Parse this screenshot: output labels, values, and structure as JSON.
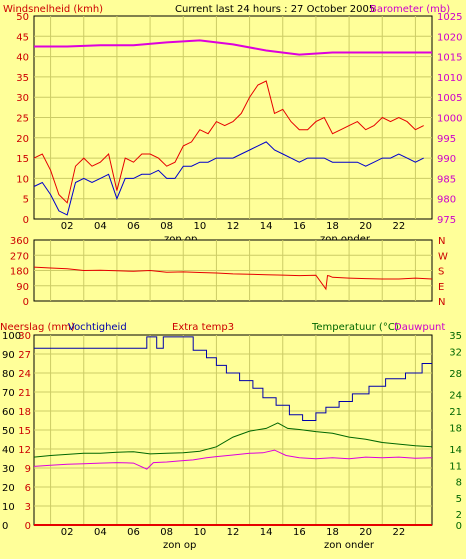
{
  "header": {
    "left_title": "Windsnelheid (kmh)",
    "center_title": "Current last 24 hours : 27 October 2005",
    "right_title": "Barometer (mb)"
  },
  "colors": {
    "background": "#ffff99",
    "wind_gust": "#e60000",
    "wind_avg": "#0000cc",
    "barometer": "#dd00dd",
    "direction": "#e60000",
    "rain": "#e60000",
    "humidity": "#0000aa",
    "temperature": "#006600",
    "dewpoint": "#dd00dd",
    "axis_text_left": "#cc0000",
    "axis_text_right": "#cc00cc",
    "green_text": "#006600"
  },
  "sun_labels": {
    "sunrise": "zon op",
    "sunset": "zon onder"
  },
  "chart_data": [
    {
      "type": "line",
      "title": "Windsnelheid (kmh) / Barometer (mb)",
      "x_ticks": [
        "02",
        "04",
        "06",
        "08",
        "10",
        "12",
        "14",
        "16",
        "18",
        "20",
        "22"
      ],
      "x_range_hours": [
        0,
        24
      ],
      "y_left": {
        "label": "Windsnelheid (kmh)",
        "range": [
          0,
          50
        ],
        "ticks": [
          0,
          5,
          10,
          15,
          20,
          25,
          30,
          35,
          40,
          45,
          50
        ]
      },
      "y_right": {
        "label": "Barometer (mb)",
        "range": [
          975,
          1025
        ],
        "ticks": [
          975,
          980,
          985,
          990,
          995,
          1000,
          1005,
          1010,
          1015,
          1020,
          1025
        ]
      },
      "series": [
        {
          "name": "Windsnelheid gust",
          "axis": "left",
          "x": [
            0,
            0.5,
            1,
            1.5,
            2,
            2.5,
            3,
            3.5,
            4,
            4.5,
            5,
            5.5,
            6,
            6.5,
            7,
            7.5,
            8,
            8.5,
            9,
            9.5,
            10,
            10.5,
            11,
            11.5,
            12,
            12.5,
            13,
            13.5,
            14,
            14.5,
            15,
            15.5,
            16,
            16.5,
            17,
            17.5,
            18,
            18.5,
            19,
            19.5,
            20,
            20.5,
            21,
            21.5,
            22,
            22.5,
            23,
            23.5
          ],
          "values": [
            15,
            16,
            12,
            6,
            4,
            13,
            15,
            13,
            14,
            16,
            7,
            15,
            14,
            16,
            16,
            15,
            13,
            14,
            18,
            19,
            22,
            21,
            24,
            23,
            24,
            26,
            30,
            33,
            34,
            26,
            27,
            24,
            22,
            22,
            24,
            25,
            21,
            22,
            23,
            24,
            22,
            23,
            25,
            24,
            25,
            24,
            22,
            23
          ]
        },
        {
          "name": "Windsnelheid gemiddeld",
          "axis": "left",
          "x": [
            0,
            0.5,
            1,
            1.5,
            2,
            2.5,
            3,
            3.5,
            4,
            4.5,
            5,
            5.5,
            6,
            6.5,
            7,
            7.5,
            8,
            8.5,
            9,
            9.5,
            10,
            10.5,
            11,
            11.5,
            12,
            12.5,
            13,
            13.5,
            14,
            14.5,
            15,
            15.5,
            16,
            16.5,
            17,
            17.5,
            18,
            18.5,
            19,
            19.5,
            20,
            20.5,
            21,
            21.5,
            22,
            22.5,
            23,
            23.5
          ],
          "values": [
            8,
            9,
            6,
            2,
            1,
            9,
            10,
            9,
            10,
            11,
            5,
            10,
            10,
            11,
            11,
            12,
            10,
            10,
            13,
            13,
            14,
            14,
            15,
            15,
            15,
            16,
            17,
            18,
            19,
            17,
            16,
            15,
            14,
            15,
            15,
            15,
            14,
            14,
            14,
            14,
            13,
            14,
            15,
            15,
            16,
            15,
            14,
            15
          ]
        },
        {
          "name": "Barometer",
          "axis": "right",
          "x": [
            0,
            2,
            4,
            6,
            8,
            10,
            12,
            14,
            16,
            18,
            20,
            22,
            24
          ],
          "values": [
            1017.5,
            1017.5,
            1017.8,
            1017.8,
            1018.5,
            1019,
            1018,
            1016.5,
            1015.5,
            1016,
            1016,
            1016,
            1016
          ]
        }
      ]
    },
    {
      "type": "line",
      "title": "Windrichting",
      "x_range_hours": [
        0,
        24
      ],
      "y_left": {
        "range": [
          0,
          360
        ],
        "ticks": [
          0,
          90,
          180,
          270,
          360
        ]
      },
      "y_right": {
        "labels": [
          "N",
          "W",
          "S",
          "E",
          "N"
        ]
      },
      "series": [
        {
          "name": "Windrichting",
          "x": [
            0,
            1,
            2,
            3,
            4,
            5,
            6,
            7,
            8,
            9,
            10,
            11,
            12,
            13,
            14,
            15,
            16,
            17,
            17.6,
            17.7,
            17.8,
            18,
            19,
            20,
            21,
            22,
            23,
            24
          ],
          "values": [
            200,
            195,
            190,
            180,
            182,
            178,
            175,
            180,
            170,
            172,
            168,
            165,
            160,
            158,
            155,
            153,
            150,
            152,
            70,
            150,
            148,
            140,
            135,
            132,
            130,
            130,
            135,
            130
          ]
        }
      ]
    },
    {
      "type": "line",
      "title": "Neerslag / Vochtigheid / Temperatuur / Dauwpunt",
      "legend": [
        "Neerslag (mm)",
        "Vochtigheid",
        "Extra temp3",
        "Temperatuur (°C)",
        "Dauwpunt"
      ],
      "x_ticks": [
        "02",
        "04",
        "06",
        "08",
        "10",
        "12",
        "14",
        "16",
        "18",
        "20",
        "22"
      ],
      "x_range_hours": [
        0,
        24
      ],
      "y_rain": {
        "range": [
          0,
          30
        ],
        "ticks": [
          0,
          3,
          6,
          9,
          12,
          15,
          18,
          21,
          24,
          27,
          30
        ]
      },
      "y_humidity": {
        "range": [
          0,
          100
        ],
        "ticks": [
          0,
          10,
          20,
          30,
          40,
          50,
          60,
          70,
          80,
          90,
          100
        ]
      },
      "y_temperature": {
        "range": [
          0,
          35
        ],
        "ticks": [
          0,
          2,
          5,
          8,
          11,
          14,
          18,
          21,
          24,
          28,
          32,
          35
        ]
      },
      "series": [
        {
          "name": "Vochtigheid",
          "axis": "humidity",
          "x": [
            0,
            1,
            2,
            3,
            4,
            5,
            6,
            6.8,
            6.8,
            7.4,
            7.4,
            7.8,
            7.8,
            8.6,
            8.6,
            9.6,
            9.6,
            10.4,
            10.4,
            11,
            11,
            11.6,
            11.6,
            12.4,
            12.4,
            13.2,
            13.2,
            13.8,
            13.8,
            14.6,
            14.6,
            15.4,
            15.4,
            16.2,
            16.2,
            17,
            17,
            17.6,
            17.6,
            18.4,
            18.4,
            19.2,
            19.2,
            20.2,
            20.2,
            21.2,
            21.2,
            22.4,
            22.4,
            23.4,
            23.4,
            24
          ],
          "values": [
            93,
            93,
            93,
            93,
            93,
            93,
            93,
            93,
            99,
            99,
            93,
            93,
            99,
            99,
            99,
            99,
            92,
            92,
            88,
            88,
            84,
            84,
            80,
            80,
            76,
            76,
            72,
            72,
            67,
            67,
            63,
            63,
            58,
            58,
            55,
            55,
            59,
            59,
            62,
            62,
            65,
            65,
            69,
            69,
            73,
            73,
            77,
            77,
            80,
            80,
            85,
            85
          ]
        },
        {
          "name": "Temperatuur",
          "axis": "temperature",
          "x": [
            0,
            1,
            2,
            3,
            4,
            5,
            6,
            7,
            8,
            9,
            10,
            11,
            12,
            13,
            14,
            14.7,
            15.3,
            16,
            17,
            18,
            19,
            20,
            21,
            22,
            23,
            24
          ],
          "values": [
            12.5,
            12.8,
            13,
            13.2,
            13.2,
            13.4,
            13.5,
            13.1,
            13.2,
            13.3,
            13.6,
            14.4,
            16.2,
            17.3,
            17.8,
            18.8,
            17.8,
            17.6,
            17.2,
            16.9,
            16.2,
            15.8,
            15.2,
            14.9,
            14.6,
            14.4
          ]
        },
        {
          "name": "Dauwpunt",
          "axis": "temperature",
          "x": [
            0,
            1,
            2,
            3,
            4,
            5,
            6,
            6.8,
            7.2,
            8,
            8.8,
            9.6,
            10.4,
            11,
            12,
            13,
            13.8,
            14.5,
            15.2,
            16,
            17,
            18,
            19,
            20,
            21,
            22,
            23,
            24
          ],
          "values": [
            10.8,
            11,
            11.2,
            11.3,
            11.4,
            11.5,
            11.4,
            10.3,
            11.5,
            11.6,
            11.8,
            12,
            12.4,
            12.6,
            12.9,
            13.2,
            13.3,
            13.8,
            12.8,
            12.4,
            12.2,
            12.4,
            12.2,
            12.5,
            12.4,
            12.5,
            12.3,
            12.4
          ]
        },
        {
          "name": "Neerslag",
          "axis": "rain",
          "x": [
            0,
            24
          ],
          "values": [
            0,
            0
          ]
        }
      ]
    }
  ]
}
